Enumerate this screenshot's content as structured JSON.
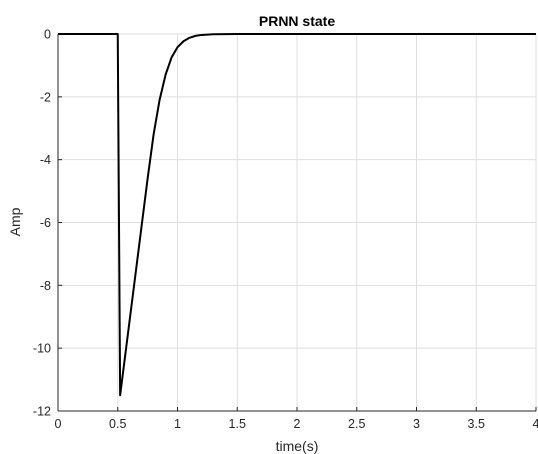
{
  "chart_data": {
    "type": "line",
    "title": "PRNN state",
    "xlabel": "time(s)",
    "ylabel": "Amp",
    "xlim": [
      0,
      4
    ],
    "ylim": [
      -12,
      0
    ],
    "grid": true,
    "x_ticks": [
      0,
      0.5,
      1,
      1.5,
      2,
      2.5,
      3,
      3.5,
      4
    ],
    "y_ticks": [
      0,
      -2,
      -4,
      -6,
      -8,
      -10,
      -12
    ],
    "x_tick_labels": [
      "0",
      "0.5",
      "1",
      "1.5",
      "2",
      "2.5",
      "3",
      "3.5",
      "4"
    ],
    "y_tick_labels": [
      "0",
      "-2",
      "-4",
      "-6",
      "-8",
      "-10",
      "-12"
    ],
    "series": [
      {
        "color": "#000000",
        "x": [
          0,
          0.5,
          0.52,
          0.55,
          0.6,
          0.65,
          0.7,
          0.75,
          0.8,
          0.85,
          0.9,
          0.95,
          1.0,
          1.05,
          1.1,
          1.15,
          1.2,
          1.3,
          1.4,
          1.5,
          1.7,
          2.0,
          4.0
        ],
        "y": [
          0,
          0,
          -11.5,
          -10.6,
          -9.1,
          -7.6,
          -6.1,
          -4.6,
          -3.2,
          -2.1,
          -1.3,
          -0.75,
          -0.42,
          -0.23,
          -0.12,
          -0.06,
          -0.03,
          -0.01,
          -0.004,
          -0.001,
          0,
          0,
          0
        ]
      }
    ]
  },
  "colors": {
    "background": "#ffffff",
    "grid": "#dfdfdf",
    "axis": "#262626",
    "line": "#000000"
  }
}
